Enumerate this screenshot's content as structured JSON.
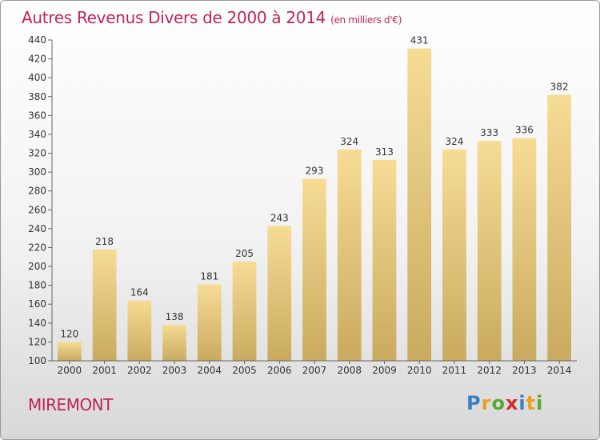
{
  "header": {
    "title": "Autres Revenus Divers de 2000 à 2014",
    "subtitle": "(en milliers d'€)"
  },
  "footer": {
    "town": "MIREMONT",
    "logo_letters": [
      {
        "ch": "P",
        "color": "#3b7fc4"
      },
      {
        "ch": "r",
        "color": "#e8a21c"
      },
      {
        "ch": "o",
        "color": "#58a832"
      },
      {
        "ch": "x",
        "color": "#d8262e"
      },
      {
        "ch": "i",
        "color": "#3b7fc4"
      },
      {
        "ch": "t",
        "color": "#e8a21c"
      },
      {
        "ch": "i",
        "color": "#58a832"
      }
    ]
  },
  "chart_data": {
    "type": "bar",
    "categories": [
      "2000",
      "2001",
      "2002",
      "2003",
      "2004",
      "2005",
      "2006",
      "2007",
      "2008",
      "2009",
      "2010",
      "2011",
      "2012",
      "2013",
      "2014"
    ],
    "values": [
      120,
      218,
      164,
      138,
      181,
      205,
      243,
      293,
      324,
      313,
      431,
      324,
      333,
      336,
      382
    ],
    "ylim": [
      100,
      440
    ],
    "yticks": [
      100,
      120,
      140,
      160,
      180,
      200,
      220,
      240,
      260,
      280,
      300,
      320,
      340,
      360,
      380,
      400,
      420,
      440
    ],
    "grid": false,
    "bar_color": "#e6c77a",
    "accent_color": "#c0245a"
  }
}
